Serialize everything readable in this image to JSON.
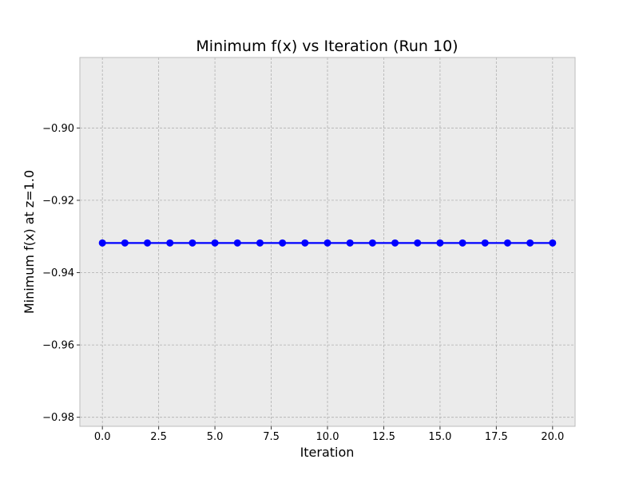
{
  "chart_data": {
    "type": "line",
    "title": "Minimum f(x) vs Iteration (Run 10)",
    "xlabel": "Iteration",
    "ylabel": "Minimum f(x) at z=1.0",
    "xlim": [
      -1.0,
      21.0
    ],
    "ylim": [
      -0.9825,
      -0.8805
    ],
    "xticks": [
      0.0,
      2.5,
      5.0,
      7.5,
      10.0,
      12.5,
      15.0,
      17.5,
      20.0
    ],
    "xtick_labels": [
      "0.0",
      "2.5",
      "5.0",
      "7.5",
      "10.0",
      "12.5",
      "15.0",
      "17.5",
      "20.0"
    ],
    "yticks": [
      -0.9,
      -0.92,
      -0.94,
      -0.96,
      -0.98
    ],
    "ytick_labels": [
      "−0.90",
      "−0.92",
      "−0.94",
      "−0.96",
      "−0.98"
    ],
    "grid": true,
    "legend": "none",
    "series": [
      {
        "color": "#0000ff",
        "marker": "circle",
        "x": [
          0,
          1,
          2,
          3,
          4,
          5,
          6,
          7,
          8,
          9,
          10,
          11,
          12,
          13,
          14,
          15,
          16,
          17,
          18,
          19,
          20
        ],
        "y": [
          -0.9318,
          -0.9318,
          -0.9318,
          -0.9318,
          -0.9318,
          -0.9318,
          -0.9318,
          -0.9318,
          -0.9318,
          -0.9318,
          -0.9318,
          -0.9318,
          -0.9318,
          -0.9318,
          -0.9318,
          -0.9318,
          -0.9318,
          -0.9318,
          -0.9318,
          -0.9318,
          -0.9318
        ]
      }
    ],
    "colors": {
      "plot_background": "#ebebeb",
      "plot_border": "#bcbcbc",
      "grid": "#b0b0b0",
      "line": "#0000ff"
    }
  }
}
